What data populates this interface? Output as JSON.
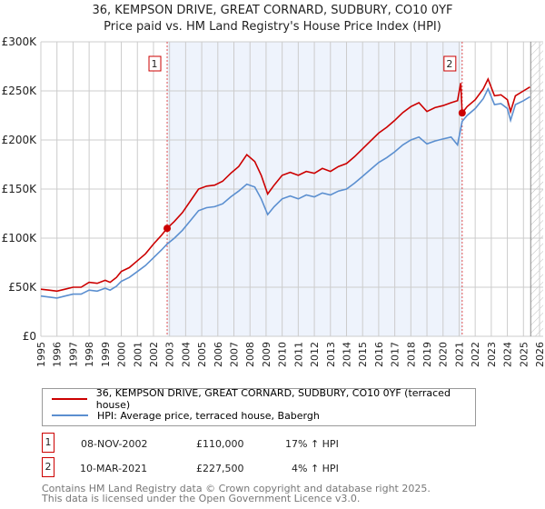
{
  "chart_data": {
    "type": "line",
    "title": "36, KEMPSON DRIVE, GREAT CORNARD, SUDBURY, CO10 0YF",
    "subtitle": "Price paid vs. HM Land Registry's House Price Index (HPI)",
    "xlim": [
      1995,
      2026
    ],
    "ylim": [
      0,
      300000
    ],
    "yticks": [
      {
        "v": 0,
        "label": "£0"
      },
      {
        "v": 50000,
        "label": "£50K"
      },
      {
        "v": 100000,
        "label": "£100K"
      },
      {
        "v": 150000,
        "label": "£150K"
      },
      {
        "v": 200000,
        "label": "£200K"
      },
      {
        "v": 250000,
        "label": "£250K"
      },
      {
        "v": 300000,
        "label": "£300K"
      }
    ],
    "xticks": [
      "1995",
      "1996",
      "1997",
      "1998",
      "1999",
      "2000",
      "2001",
      "2002",
      "2003",
      "2004",
      "2005",
      "2006",
      "2007",
      "2008",
      "2009",
      "2010",
      "2011",
      "2012",
      "2013",
      "2014",
      "2015",
      "2016",
      "2017",
      "2018",
      "2019",
      "2020",
      "2021",
      "2022",
      "2023",
      "2024",
      "2025",
      "2026"
    ],
    "grid": true,
    "shaded_range": [
      2002.85,
      2021.19
    ],
    "forecast_start": 2025.45,
    "colors": {
      "price": "#cc0000",
      "hpi": "#5b8fd0",
      "shade": "#eef3fc",
      "marker_line": "#e05050"
    },
    "series": [
      {
        "name": "36, KEMPSON DRIVE, GREAT CORNARD, SUDBURY, CO10 0YF (terraced house)",
        "color": "#cc0000",
        "x": [
          1995.0,
          1995.5,
          1996.0,
          1996.5,
          1997.0,
          1997.5,
          1998.0,
          1998.5,
          1999.0,
          1999.3,
          1999.7,
          2000.0,
          2000.5,
          2001.0,
          2001.5,
          2002.0,
          2002.5,
          2002.85,
          2003.3,
          2003.8,
          2004.3,
          2004.8,
          2005.3,
          2005.8,
          2006.3,
          2006.8,
          2007.3,
          2007.8,
          2008.3,
          2008.7,
          2009.1,
          2009.5,
          2010.0,
          2010.5,
          2011.0,
          2011.5,
          2012.0,
          2012.5,
          2013.0,
          2013.5,
          2014.0,
          2014.5,
          2015.0,
          2015.5,
          2016.0,
          2016.5,
          2017.0,
          2017.5,
          2018.0,
          2018.5,
          2019.0,
          2019.5,
          2020.0,
          2020.5,
          2020.9,
          2021.1,
          2021.19,
          2021.5,
          2022.0,
          2022.5,
          2022.8,
          2023.2,
          2023.6,
          2024.0,
          2024.2,
          2024.5,
          2025.0,
          2025.4
        ],
        "y": [
          48,
          47,
          46,
          48,
          50,
          50,
          55,
          54,
          57,
          55,
          60,
          66,
          70,
          77,
          84,
          94,
          103,
          110,
          117,
          126,
          138,
          150,
          153,
          154,
          158,
          166,
          173,
          185,
          178,
          164,
          145,
          154,
          164,
          167,
          164,
          168,
          166,
          171,
          168,
          173,
          176,
          183,
          191,
          199,
          207,
          213,
          220,
          228,
          234,
          238,
          229,
          233,
          235,
          238,
          240,
          258,
          227.5,
          234,
          241,
          252,
          262,
          245,
          246,
          241,
          229,
          245,
          250,
          254
        ]
      },
      {
        "name": "HPI: Average price, terraced house, Babergh",
        "color": "#5b8fd0",
        "x": [
          1995.0,
          1995.5,
          1996.0,
          1996.5,
          1997.0,
          1997.5,
          1998.0,
          1998.5,
          1999.0,
          1999.3,
          1999.7,
          2000.0,
          2000.5,
          2001.0,
          2001.5,
          2002.0,
          2002.5,
          2002.85,
          2003.3,
          2003.8,
          2004.3,
          2004.8,
          2005.3,
          2005.8,
          2006.3,
          2006.8,
          2007.3,
          2007.8,
          2008.3,
          2008.7,
          2009.1,
          2009.5,
          2010.0,
          2010.5,
          2011.0,
          2011.5,
          2012.0,
          2012.5,
          2013.0,
          2013.5,
          2014.0,
          2014.5,
          2015.0,
          2015.5,
          2016.0,
          2016.5,
          2017.0,
          2017.5,
          2018.0,
          2018.5,
          2019.0,
          2019.5,
          2020.0,
          2020.5,
          2020.9,
          2021.19,
          2021.5,
          2022.0,
          2022.5,
          2022.8,
          2023.2,
          2023.6,
          2024.0,
          2024.2,
          2024.5,
          2025.0,
          2025.4
        ],
        "y": [
          41,
          40,
          39,
          41,
          43,
          43,
          47,
          46,
          49,
          47,
          51,
          56,
          60,
          66,
          72,
          80,
          88,
          94,
          100,
          108,
          118,
          128,
          131,
          132,
          135,
          142,
          148,
          155,
          152,
          140,
          124,
          132,
          140,
          143,
          140,
          144,
          142,
          146,
          144,
          148,
          150,
          156,
          163,
          170,
          177,
          182,
          188,
          195,
          200,
          203,
          196,
          199,
          201,
          203,
          195,
          219,
          225,
          232,
          242,
          252,
          236,
          237,
          232,
          220,
          236,
          240,
          244
        ]
      }
    ],
    "y_unit": "thousands GBP",
    "annotations": [
      {
        "label": "1",
        "x": 2002.85,
        "y": 110,
        "date": "08-NOV-2002",
        "price": "£110,000",
        "hpi": "17% ↑ HPI"
      },
      {
        "label": "2",
        "x": 2021.19,
        "y": 227.5,
        "date": "10-MAR-2021",
        "price": "£227,500",
        "hpi": "4% ↑ HPI"
      }
    ],
    "legend_position": "bottom"
  },
  "footer": {
    "line1": "Contains HM Land Registry data © Crown copyright and database right 2025.",
    "line2": "This data is licensed under the Open Government Licence v3.0."
  }
}
